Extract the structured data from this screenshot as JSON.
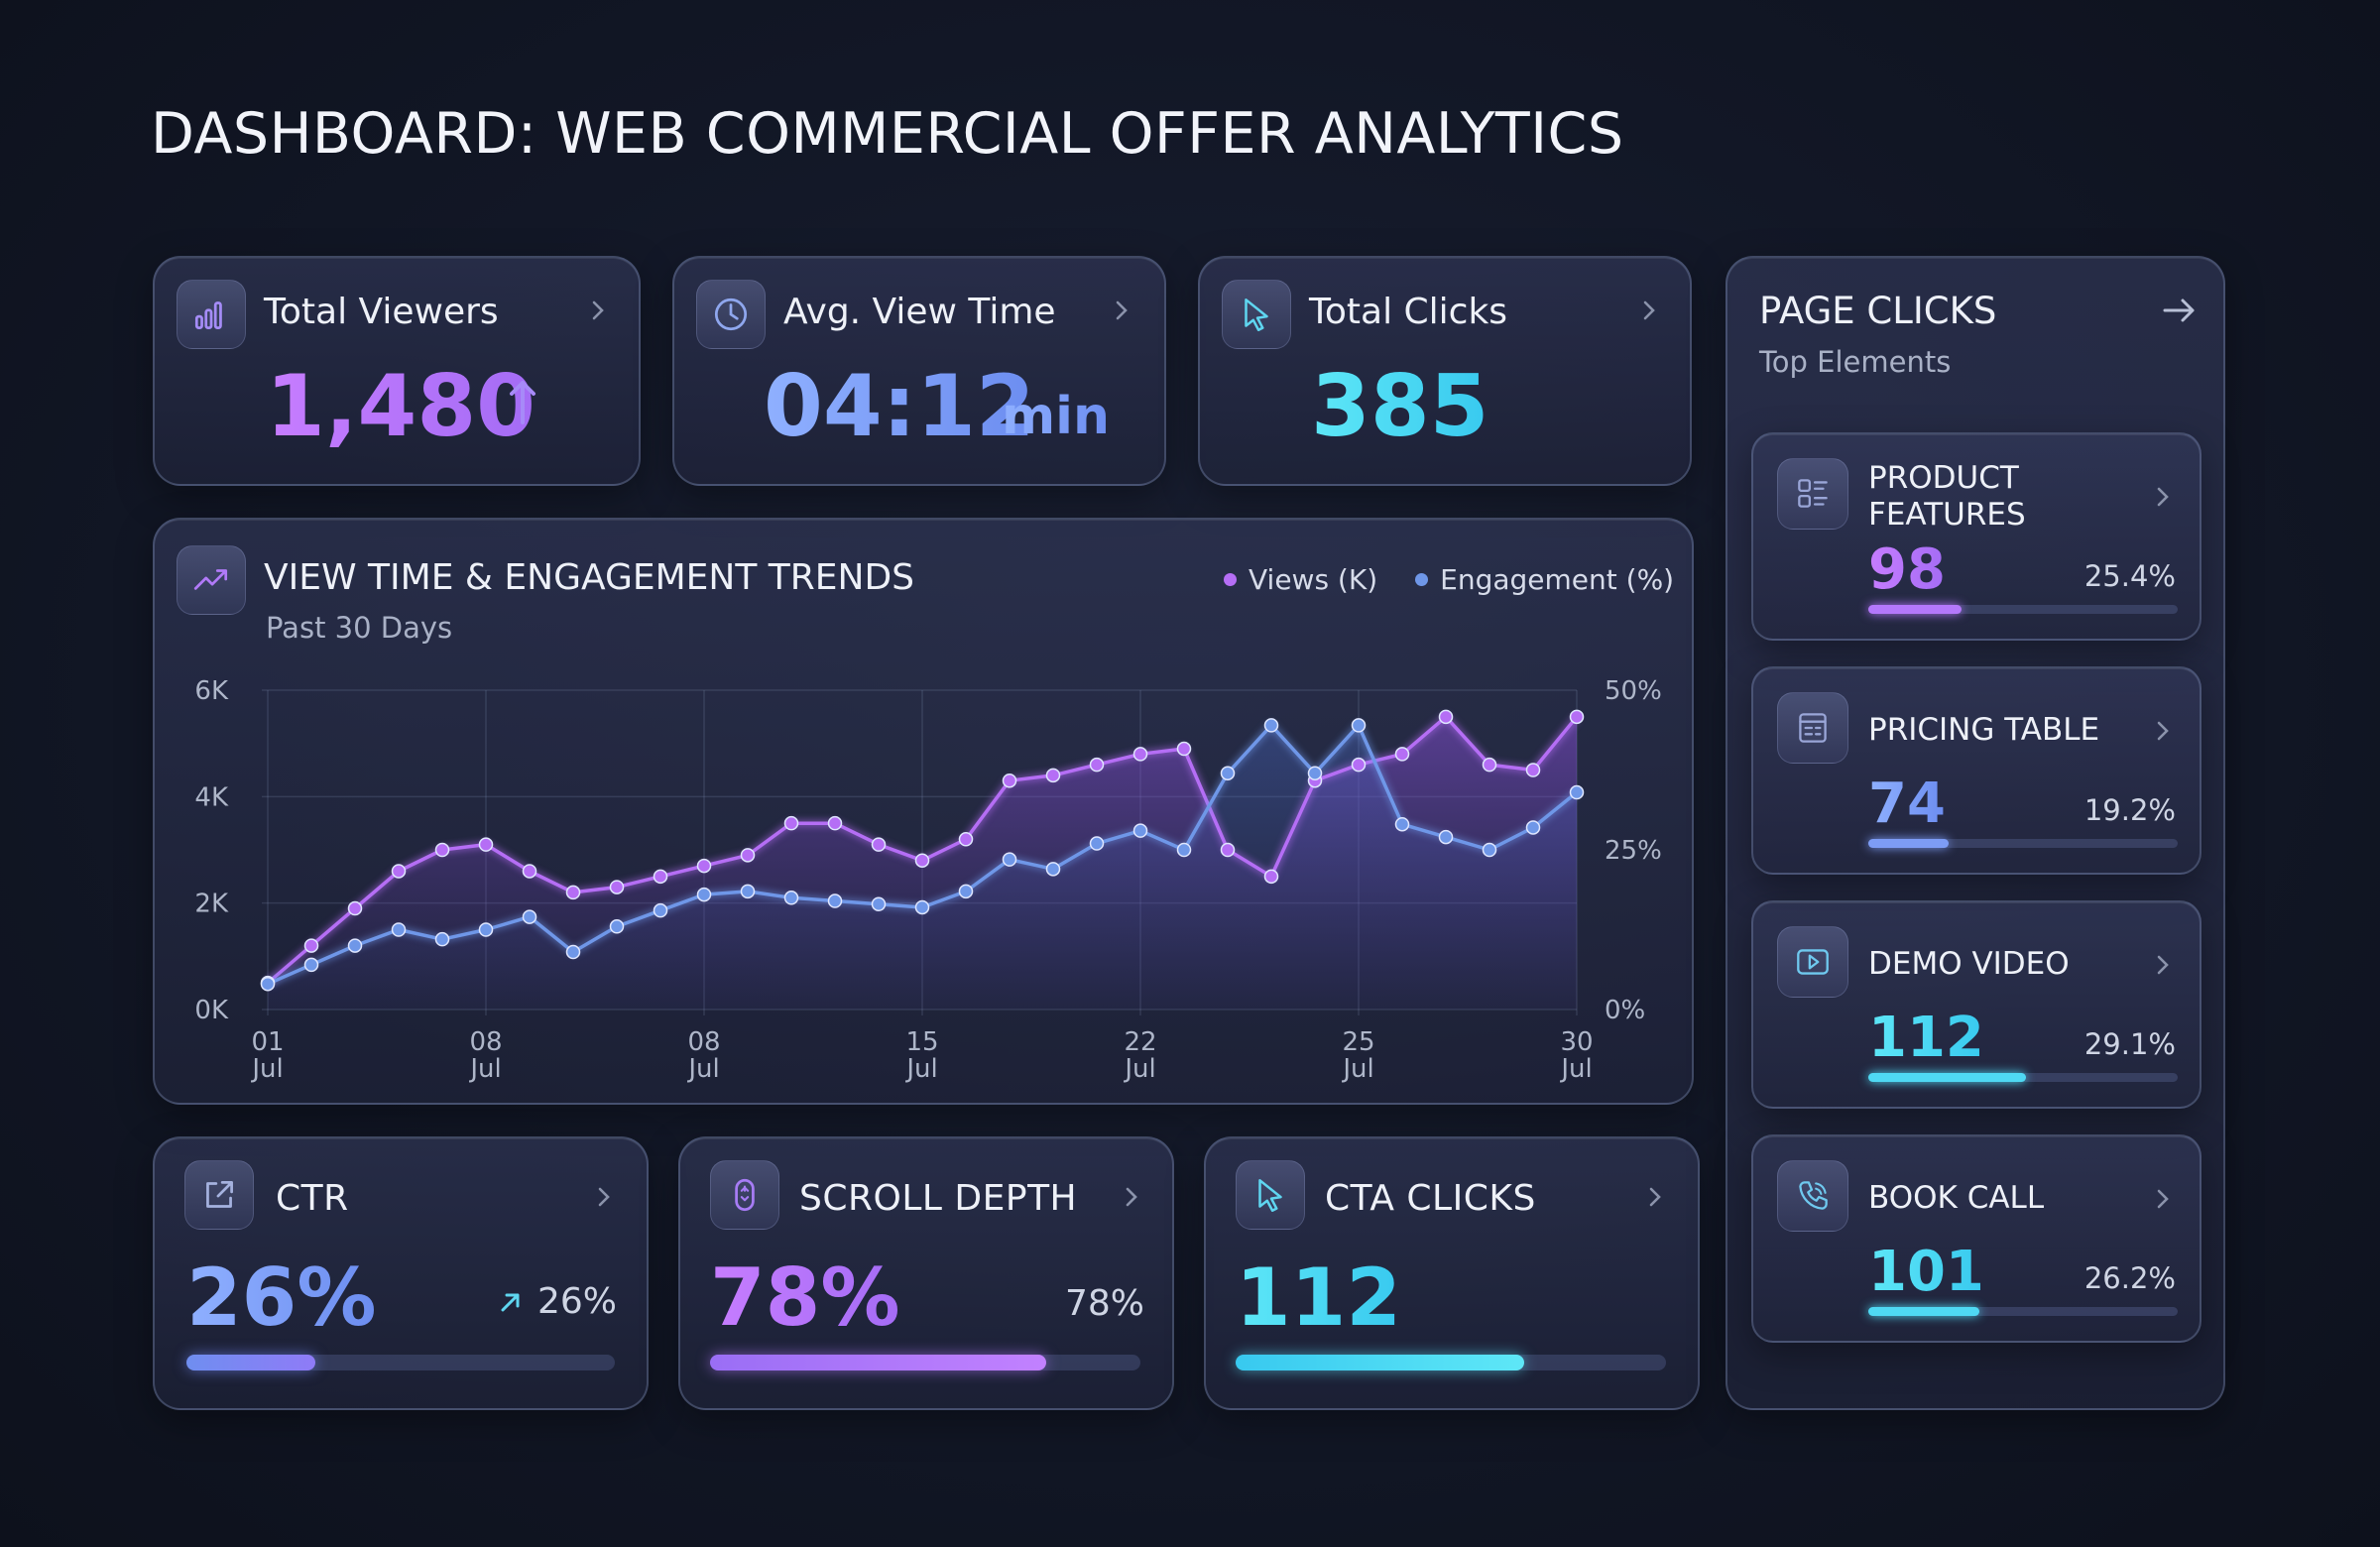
{
  "title": "DASHBOARD: WEB COMMERCIAL OFFER ANALYTICS",
  "colors": {
    "purple": "#b478fb",
    "blue": "#7d9cf5",
    "cyan": "#4fd9f3",
    "purple_line": "#b56ef5",
    "blue_line": "#6f97e8"
  },
  "kpis": {
    "viewers": {
      "label": "Total Viewers",
      "value": "1,480",
      "icon": "bar-chart-icon",
      "trend_icon": "arrow-up-icon"
    },
    "view_time": {
      "label": "Avg. View Time",
      "value": "04:12",
      "unit": "min",
      "icon": "clock-icon"
    },
    "clicks": {
      "label": "Total Clicks",
      "value": "385",
      "icon": "cursor-icon"
    }
  },
  "trends": {
    "title": "VIEW TIME & ENGAGEMENT TRENDS",
    "subtitle": "Past 30 Days",
    "icon": "trending-up-icon"
  },
  "chart_data": {
    "type": "line",
    "title": "VIEW TIME & ENGAGEMENT TRENDS",
    "subtitle": "Past 30 Days",
    "x_tick_labels": [
      [
        "01",
        "Jul"
      ],
      [
        "08",
        "Jul"
      ],
      [
        "08",
        "Jul"
      ],
      [
        "15",
        "Jul"
      ],
      [
        "22",
        "Jul"
      ],
      [
        "25",
        "Jul"
      ],
      [
        "30",
        "Jul"
      ]
    ],
    "y_left_ticks": [
      "0K",
      "2K",
      "4K",
      "6K"
    ],
    "y_left_range": [
      0,
      6000
    ],
    "y_right_ticks": [
      "0%",
      "25%",
      "50%"
    ],
    "y_right_range": [
      0,
      50
    ],
    "grid": true,
    "legend_position": "top-right",
    "x": [
      1,
      2,
      3,
      4,
      5,
      6,
      7,
      8,
      9,
      10,
      11,
      12,
      13,
      14,
      15,
      16,
      17,
      18,
      19,
      20,
      21,
      22,
      23,
      24,
      25,
      26,
      27,
      28,
      29,
      30,
      31
    ],
    "series": [
      {
        "name": "Views (K)",
        "axis": "left",
        "color": "#b56ef5",
        "values": [
          500,
          1200,
          1900,
          2600,
          3000,
          3100,
          2600,
          2200,
          2300,
          2500,
          2700,
          2900,
          3500,
          3500,
          3100,
          2800,
          3200,
          4300,
          4400,
          4600,
          4800,
          4900,
          3000,
          2500,
          4300,
          4600,
          4800,
          5500,
          4600,
          4500,
          5500
        ]
      },
      {
        "name": "Engagement (%)",
        "axis": "right",
        "color": "#6f97e8",
        "values": [
          4,
          7,
          10,
          12.5,
          11,
          12.5,
          14.5,
          9,
          13,
          15.5,
          18,
          18.5,
          17.5,
          17,
          16.5,
          16,
          18.5,
          23.5,
          22,
          26,
          28,
          25,
          37,
          44.5,
          37,
          44.5,
          29,
          27,
          25,
          28.5,
          34
        ]
      }
    ]
  },
  "bottom": {
    "ctr": {
      "label": "CTR",
      "value": "26%",
      "delta": "26%",
      "icon": "external-link-icon",
      "delta_icon": "arrow-up-right-icon",
      "progress": 0.3
    },
    "scroll": {
      "label": "SCROLL DEPTH",
      "value": "78%",
      "pct": "78%",
      "icon": "mouse-icon",
      "progress": 0.78
    },
    "cta": {
      "label": "CTA CLICKS",
      "value": "112",
      "icon": "cursor-icon",
      "progress": 0.67
    }
  },
  "page_clicks": {
    "title": "PAGE CLICKS",
    "subtitle": "Top Elements",
    "icon": "arrow-right-icon",
    "items": [
      {
        "name": "PRODUCT\nFEATURES",
        "value": "98",
        "pct": "25.4%",
        "icon": "features-icon",
        "progress": 0.3,
        "color": "#b478fb"
      },
      {
        "name": "PRICING TABLE",
        "value": "74",
        "pct": "19.2%",
        "icon": "table-icon",
        "progress": 0.26,
        "color": "#7d9cf5"
      },
      {
        "name": "DEMO VIDEO",
        "value": "112",
        "pct": "29.1%",
        "icon": "video-icon",
        "progress": 0.51,
        "color": "#4fd9f3"
      },
      {
        "name": "BOOK CALL",
        "value": "101",
        "pct": "26.2%",
        "icon": "phone-icon",
        "progress": 0.36,
        "color": "#4fd9f3"
      }
    ]
  }
}
